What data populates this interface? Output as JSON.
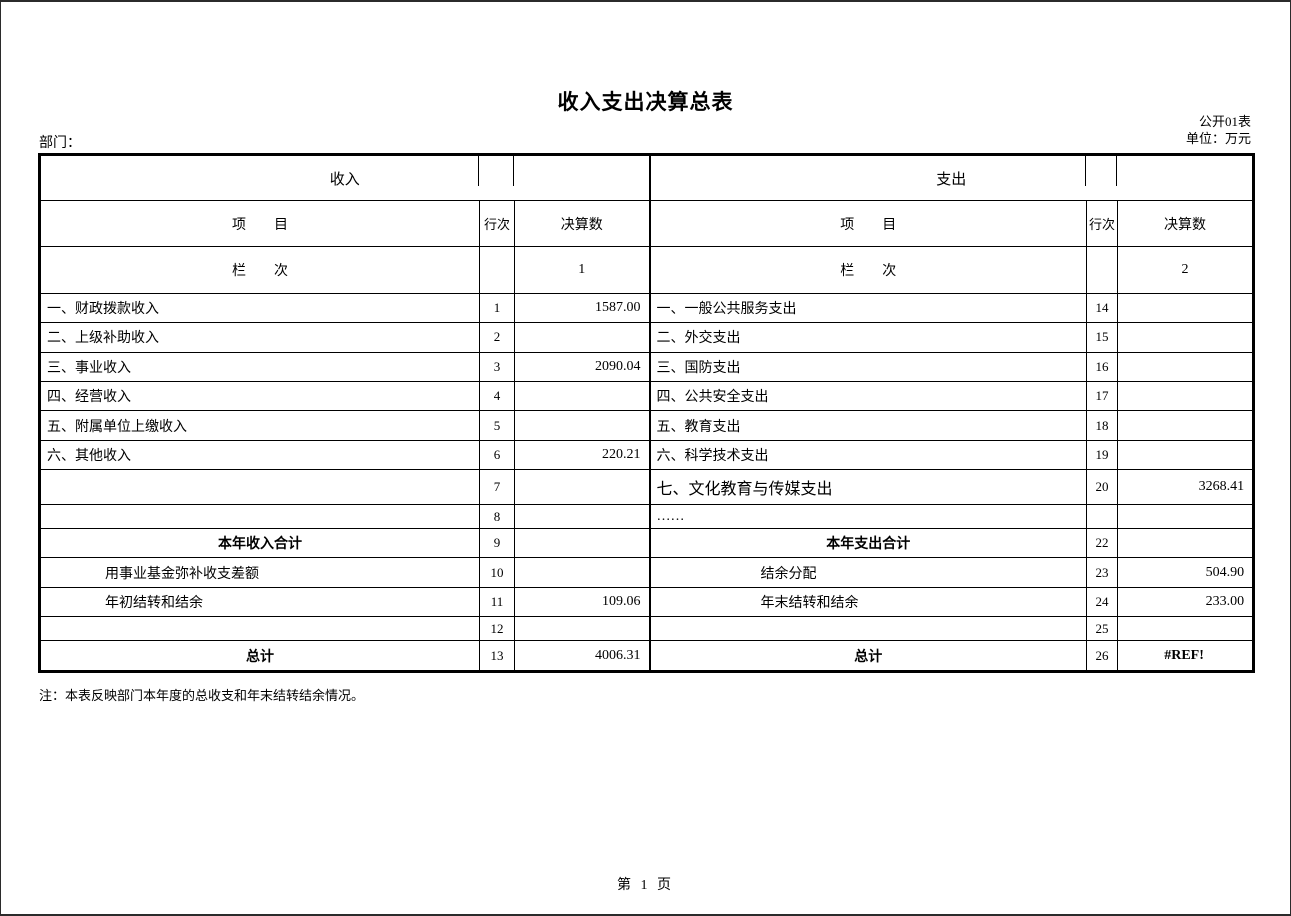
{
  "page": {
    "title": "收入支出决算总表",
    "doc_code": "公开01表",
    "unit_label": "单位：万元",
    "department_label": "部门：",
    "note": "注：本表反映部门本年度的总收支和年末结转结余情况。",
    "footer": "第 1 页"
  },
  "table": {
    "income_header": "收入",
    "expense_header": "支出",
    "item_header": "项　　目",
    "row_no_header": "行次",
    "amount_header": "决算数",
    "column_label": "栏　　次",
    "income_col_no": "1",
    "expense_col_no": "2",
    "income_rows": [
      {
        "item": "一、财政拨款收入",
        "no": "1",
        "value": "1587.00",
        "style": "item"
      },
      {
        "item": "二、上级补助收入",
        "no": "2",
        "value": "",
        "style": "item"
      },
      {
        "item": "三、事业收入",
        "no": "3",
        "value": "2090.04",
        "style": "item"
      },
      {
        "item": "四、经营收入",
        "no": "4",
        "value": "",
        "style": "item"
      },
      {
        "item": "五、附属单位上缴收入",
        "no": "5",
        "value": "",
        "style": "item"
      },
      {
        "item": "六、其他收入",
        "no": "6",
        "value": "220.21",
        "style": "item"
      },
      {
        "item": "",
        "no": "7",
        "value": "",
        "style": "item"
      },
      {
        "item": "",
        "no": "8",
        "value": "",
        "style": "item"
      },
      {
        "item": "本年收入合计",
        "no": "9",
        "value": "",
        "style": "sum"
      },
      {
        "item": "用事业基金弥补收支差额",
        "no": "10",
        "value": "",
        "style": "indent"
      },
      {
        "item": "年初结转和结余",
        "no": "11",
        "value": "109.06",
        "style": "indent"
      },
      {
        "item": "",
        "no": "12",
        "value": "",
        "style": "item"
      },
      {
        "item": "总计",
        "no": "13",
        "value": "4006.31",
        "style": "sum"
      }
    ],
    "expense_rows": [
      {
        "item": "一、一般公共服务支出",
        "no": "14",
        "value": "",
        "style": "item"
      },
      {
        "item": "二、外交支出",
        "no": "15",
        "value": "",
        "style": "item"
      },
      {
        "item": "三、国防支出",
        "no": "16",
        "value": "",
        "style": "item"
      },
      {
        "item": "四、公共安全支出",
        "no": "17",
        "value": "",
        "style": "item"
      },
      {
        "item": "五、教育支出",
        "no": "18",
        "value": "",
        "style": "item"
      },
      {
        "item": "六、科学技术支出",
        "no": "19",
        "value": "",
        "style": "item"
      },
      {
        "item": "七、文化教育与传媒支出",
        "no": "20",
        "value": "3268.41",
        "style": "large"
      },
      {
        "item": "……",
        "no": "",
        "value": "",
        "style": "item"
      },
      {
        "item": "本年支出合计",
        "no": "22",
        "value": "",
        "style": "sum"
      },
      {
        "item": "结余分配",
        "no": "23",
        "value": "504.90",
        "style": "indent"
      },
      {
        "item": "年末结转和结余",
        "no": "24",
        "value": "233.00",
        "style": "indent"
      },
      {
        "item": "",
        "no": "25",
        "value": "",
        "style": "item"
      },
      {
        "item": "总计",
        "no": "26",
        "value": "#REF!",
        "style": "sum",
        "value_style": "center-bold"
      }
    ]
  }
}
